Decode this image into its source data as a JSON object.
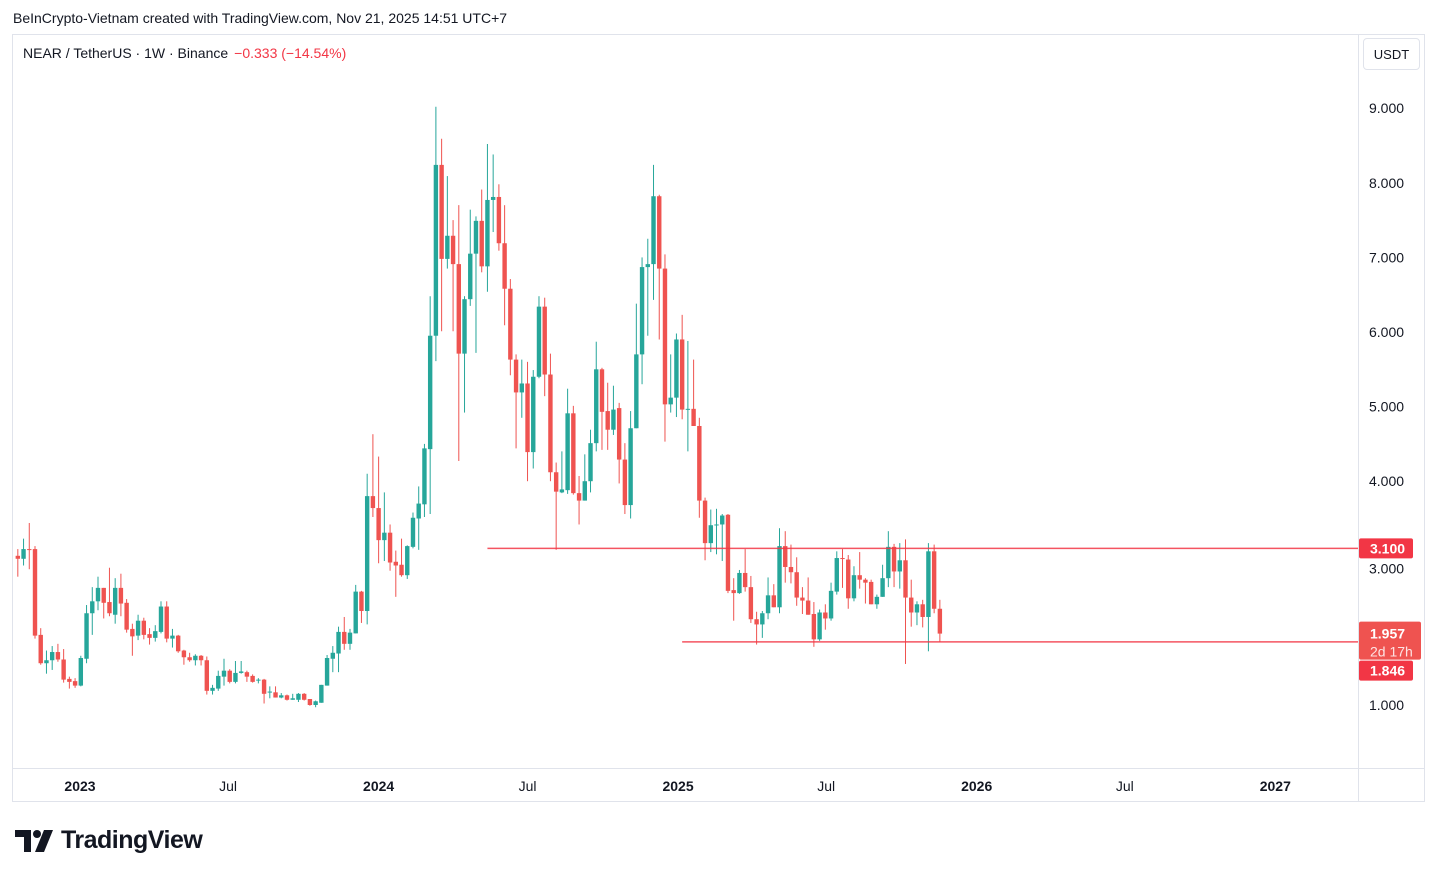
{
  "header": {
    "credit": "BeInCrypto-Vietnam created with TradingView.com, Nov 21, 2025 14:51 UTC+7"
  },
  "legend": {
    "symbol": "NEAR / TetherUS · 1W · Binance",
    "change": "−0.333 (−14.54%)"
  },
  "currency_button": "USDT",
  "branding": {
    "logo_text": "TradingView"
  },
  "colors": {
    "up": "#26a69a",
    "down": "#ef5350",
    "level_line": "#f23645",
    "last_price": "#ef5350",
    "label": "#f23645"
  },
  "chart_data": {
    "type": "candlestick",
    "symbol": "NEAR / TetherUS",
    "interval": "1W",
    "exchange": "Binance",
    "ylim": [
      0.0,
      9.0
    ],
    "y_scale": "linear",
    "grid": false,
    "y_ticks": [
      "9.000",
      "8.000",
      "7.000",
      "6.000",
      "5.000",
      "4.000",
      "3.000",
      "1.000"
    ],
    "y_tick_values": [
      9,
      8,
      7,
      6,
      5,
      4,
      3,
      1
    ],
    "x_ticks": [
      {
        "label": "2023",
        "date": "2023-01-01",
        "major": true
      },
      {
        "label": "Jul",
        "date": "2023-07-01",
        "major": false
      },
      {
        "label": "2024",
        "date": "2024-01-01",
        "major": true
      },
      {
        "label": "Jul",
        "date": "2024-07-01",
        "major": false
      },
      {
        "label": "2025",
        "date": "2025-01-01",
        "major": true
      },
      {
        "label": "Jul",
        "date": "2025-07-01",
        "major": false
      },
      {
        "label": "2026",
        "date": "2026-01-01",
        "major": true
      },
      {
        "label": "Jul",
        "date": "2026-07-01",
        "major": false
      },
      {
        "label": "2027",
        "date": "2027-01-01",
        "major": true
      }
    ],
    "dates": [
      "2022-10-17",
      "2022-10-24",
      "2022-10-31",
      "2022-11-07",
      "2022-11-14",
      "2022-11-21",
      "2022-11-28",
      "2022-12-05",
      "2022-12-12",
      "2022-12-19",
      "2022-12-26",
      "2023-01-02",
      "2023-01-09",
      "2023-01-16",
      "2023-01-23",
      "2023-01-30",
      "2023-02-06",
      "2023-02-13",
      "2023-02-20",
      "2023-02-27",
      "2023-03-06",
      "2023-03-13",
      "2023-03-20",
      "2023-03-27",
      "2023-04-03",
      "2023-04-10",
      "2023-04-17",
      "2023-04-24",
      "2023-05-01",
      "2023-05-08",
      "2023-05-15",
      "2023-05-22",
      "2023-05-29",
      "2023-06-05",
      "2023-06-12",
      "2023-06-19",
      "2023-06-26",
      "2023-07-03",
      "2023-07-10",
      "2023-07-17",
      "2023-07-24",
      "2023-07-31",
      "2023-08-07",
      "2023-08-14",
      "2023-08-21",
      "2023-08-28",
      "2023-09-04",
      "2023-09-11",
      "2023-09-18",
      "2023-09-25",
      "2023-10-02",
      "2023-10-09",
      "2023-10-16",
      "2023-10-23",
      "2023-10-30",
      "2023-11-06",
      "2023-11-13",
      "2023-11-20",
      "2023-11-27",
      "2023-12-04",
      "2023-12-11",
      "2023-12-18",
      "2023-12-25",
      "2024-01-01",
      "2024-01-08",
      "2024-01-15",
      "2024-01-22",
      "2024-01-29",
      "2024-02-05",
      "2024-02-12",
      "2024-02-19",
      "2024-02-26",
      "2024-03-04",
      "2024-03-11",
      "2024-03-18",
      "2024-03-25",
      "2024-04-01",
      "2024-04-08",
      "2024-04-15",
      "2024-04-22",
      "2024-04-29",
      "2024-05-06",
      "2024-05-13",
      "2024-05-20",
      "2024-05-27",
      "2024-06-03",
      "2024-06-10",
      "2024-06-17",
      "2024-06-24",
      "2024-07-01",
      "2024-07-08",
      "2024-07-15",
      "2024-07-22",
      "2024-07-29",
      "2024-08-05",
      "2024-08-12",
      "2024-08-19",
      "2024-08-26",
      "2024-09-02",
      "2024-09-09",
      "2024-09-16",
      "2024-09-23",
      "2024-09-30",
      "2024-10-07",
      "2024-10-14",
      "2024-10-21",
      "2024-10-28",
      "2024-11-04",
      "2024-11-11",
      "2024-11-18",
      "2024-11-25",
      "2024-12-02",
      "2024-12-09",
      "2024-12-16",
      "2024-12-23",
      "2024-12-30",
      "2025-01-06",
      "2025-01-13",
      "2025-01-20",
      "2025-01-27",
      "2025-02-03",
      "2025-02-10",
      "2025-02-17",
      "2025-02-24",
      "2025-03-03",
      "2025-03-10",
      "2025-03-17",
      "2025-03-24",
      "2025-03-31",
      "2025-04-07",
      "2025-04-14",
      "2025-04-21",
      "2025-04-28",
      "2025-05-05",
      "2025-05-12",
      "2025-05-19",
      "2025-05-26",
      "2025-06-02",
      "2025-06-09",
      "2025-06-16",
      "2025-06-23",
      "2025-06-30",
      "2025-07-07",
      "2025-07-14",
      "2025-07-21",
      "2025-07-28",
      "2025-08-04",
      "2025-08-11",
      "2025-08-18",
      "2025-08-25",
      "2025-09-01",
      "2025-09-08",
      "2025-09-15",
      "2025-09-22",
      "2025-09-29",
      "2025-10-06",
      "2025-10-13",
      "2025-10-20",
      "2025-10-27",
      "2025-11-03",
      "2025-11-10",
      "2025-11-17"
    ],
    "ohlc": [
      [
        3.0,
        3.09,
        2.72,
        2.96
      ],
      [
        2.96,
        3.23,
        2.87,
        3.09
      ],
      [
        3.09,
        3.44,
        2.82,
        3.08
      ],
      [
        3.09,
        3.13,
        1.89,
        1.93
      ],
      [
        1.94,
        2.03,
        1.54,
        1.56
      ],
      [
        1.56,
        1.73,
        1.42,
        1.6
      ],
      [
        1.6,
        1.79,
        1.47,
        1.71
      ],
      [
        1.71,
        1.82,
        1.58,
        1.61
      ],
      [
        1.61,
        1.75,
        1.3,
        1.34
      ],
      [
        1.35,
        1.38,
        1.22,
        1.31
      ],
      [
        1.32,
        1.36,
        1.23,
        1.26
      ],
      [
        1.26,
        1.66,
        1.25,
        1.63
      ],
      [
        1.62,
        2.34,
        1.56,
        2.23
      ],
      [
        2.23,
        2.58,
        1.94,
        2.39
      ],
      [
        2.39,
        2.72,
        2.27,
        2.57
      ],
      [
        2.57,
        2.57,
        2.16,
        2.37
      ],
      [
        2.38,
        2.84,
        2.19,
        2.23
      ],
      [
        2.21,
        2.7,
        2.09,
        2.57
      ],
      [
        2.57,
        2.76,
        2.19,
        2.36
      ],
      [
        2.37,
        2.42,
        1.97,
        2.01
      ],
      [
        2.02,
        2.09,
        1.66,
        1.92
      ],
      [
        1.93,
        2.21,
        1.87,
        2.13
      ],
      [
        2.13,
        2.17,
        1.88,
        1.94
      ],
      [
        1.95,
        2.03,
        1.81,
        1.9
      ],
      [
        1.9,
        2.07,
        1.85,
        1.99
      ],
      [
        1.98,
        2.39,
        1.96,
        2.32
      ],
      [
        2.32,
        2.39,
        1.84,
        1.89
      ],
      [
        1.89,
        2.02,
        1.77,
        1.93
      ],
      [
        1.93,
        1.94,
        1.7,
        1.72
      ],
      [
        1.73,
        1.74,
        1.54,
        1.64
      ],
      [
        1.64,
        1.7,
        1.58,
        1.6
      ],
      [
        1.6,
        1.68,
        1.53,
        1.66
      ],
      [
        1.66,
        1.67,
        1.53,
        1.6
      ],
      [
        1.6,
        1.65,
        1.14,
        1.19
      ],
      [
        1.19,
        1.27,
        1.14,
        1.23
      ],
      [
        1.22,
        1.46,
        1.19,
        1.39
      ],
      [
        1.38,
        1.62,
        1.26,
        1.46
      ],
      [
        1.46,
        1.48,
        1.29,
        1.31
      ],
      [
        1.31,
        1.59,
        1.29,
        1.43
      ],
      [
        1.43,
        1.59,
        1.42,
        1.45
      ],
      [
        1.44,
        1.46,
        1.31,
        1.38
      ],
      [
        1.39,
        1.41,
        1.3,
        1.31
      ],
      [
        1.33,
        1.36,
        1.29,
        1.34
      ],
      [
        1.34,
        1.35,
        1.02,
        1.15
      ],
      [
        1.17,
        1.25,
        1.09,
        1.18
      ],
      [
        1.17,
        1.25,
        1.1,
        1.1
      ],
      [
        1.1,
        1.16,
        1.09,
        1.13
      ],
      [
        1.13,
        1.14,
        1.06,
        1.07
      ],
      [
        1.07,
        1.15,
        1.07,
        1.09
      ],
      [
        1.07,
        1.16,
        1.04,
        1.15
      ],
      [
        1.15,
        1.16,
        1.06,
        1.07
      ],
      [
        1.08,
        1.08,
        0.99,
        1.0
      ],
      [
        1.0,
        1.06,
        0.97,
        1.05
      ],
      [
        1.03,
        1.27,
        1.03,
        1.27
      ],
      [
        1.26,
        1.67,
        1.26,
        1.63
      ],
      [
        1.62,
        1.79,
        1.44,
        1.7
      ],
      [
        1.69,
        2.05,
        1.44,
        1.98
      ],
      [
        1.98,
        2.18,
        1.74,
        1.82
      ],
      [
        1.82,
        2.02,
        1.74,
        1.97
      ],
      [
        1.96,
        2.61,
        1.96,
        2.52
      ],
      [
        2.52,
        2.53,
        2.1,
        2.26
      ],
      [
        2.26,
        4.1,
        2.08,
        3.8
      ],
      [
        3.8,
        4.63,
        3.52,
        3.64
      ],
      [
        3.64,
        4.33,
        2.9,
        3.21
      ],
      [
        3.21,
        3.85,
        2.93,
        3.31
      ],
      [
        3.31,
        3.42,
        2.8,
        2.91
      ],
      [
        2.92,
        3.07,
        2.45,
        2.87
      ],
      [
        2.88,
        3.23,
        2.72,
        2.74
      ],
      [
        2.74,
        3.14,
        2.69,
        3.13
      ],
      [
        3.12,
        3.58,
        3.1,
        3.51
      ],
      [
        3.5,
        3.93,
        3.08,
        3.7
      ],
      [
        3.69,
        4.5,
        3.52,
        4.44
      ],
      [
        4.43,
        6.48,
        3.56,
        5.95
      ],
      [
        5.95,
        9.02,
        5.61,
        8.24
      ],
      [
        8.24,
        8.59,
        6.01,
        6.98
      ],
      [
        6.98,
        8.09,
        6.85,
        7.29
      ],
      [
        7.29,
        7.5,
        6.01,
        6.91
      ],
      [
        6.91,
        7.7,
        4.27,
        5.71
      ],
      [
        5.71,
        6.48,
        4.92,
        6.44
      ],
      [
        6.44,
        7.64,
        6.35,
        7.05
      ],
      [
        7.05,
        7.55,
        5.72,
        7.49
      ],
      [
        7.49,
        7.91,
        6.8,
        6.88
      ],
      [
        6.88,
        8.52,
        6.54,
        7.77
      ],
      [
        7.77,
        8.38,
        7.34,
        7.81
      ],
      [
        7.81,
        7.98,
        7.09,
        7.19
      ],
      [
        7.19,
        7.7,
        6.09,
        6.58
      ],
      [
        6.58,
        6.71,
        5.42,
        5.63
      ],
      [
        5.63,
        5.7,
        4.44,
        5.19
      ],
      [
        5.19,
        5.63,
        4.85,
        5.31
      ],
      [
        5.31,
        5.6,
        4.0,
        4.39
      ],
      [
        4.39,
        5.49,
        4.17,
        5.4
      ],
      [
        5.4,
        6.48,
        5.38,
        6.34
      ],
      [
        6.34,
        6.46,
        5.14,
        5.43
      ],
      [
        5.43,
        5.71,
        4.0,
        4.12
      ],
      [
        4.12,
        4.25,
        3.08,
        3.86
      ],
      [
        3.85,
        4.4,
        3.84,
        3.89
      ],
      [
        3.88,
        5.24,
        3.83,
        4.91
      ],
      [
        4.91,
        5.01,
        3.82,
        3.84
      ],
      [
        3.84,
        4.07,
        3.42,
        3.74
      ],
      [
        3.74,
        4.36,
        3.74,
        4.0
      ],
      [
        4.0,
        4.69,
        3.85,
        4.51
      ],
      [
        4.51,
        5.87,
        4.4,
        5.5
      ],
      [
        5.5,
        5.52,
        4.42,
        4.93
      ],
      [
        4.94,
        5.32,
        4.42,
        4.69
      ],
      [
        4.69,
        5.28,
        4.62,
        4.96
      ],
      [
        4.98,
        5.05,
        3.97,
        4.29
      ],
      [
        4.29,
        4.51,
        3.56,
        3.68
      ],
      [
        3.68,
        4.94,
        3.5,
        4.71
      ],
      [
        4.71,
        6.38,
        4.71,
        5.7
      ],
      [
        5.7,
        7.0,
        5.3,
        6.87
      ],
      [
        6.87,
        7.25,
        5.95,
        6.91
      ],
      [
        6.91,
        8.24,
        6.43,
        7.82
      ],
      [
        7.82,
        7.84,
        5.9,
        6.85
      ],
      [
        6.85,
        7.04,
        4.53,
        5.03
      ],
      [
        5.03,
        5.7,
        4.92,
        5.12
      ],
      [
        5.12,
        5.98,
        4.86,
        5.9
      ],
      [
        5.9,
        6.23,
        4.83,
        4.96
      ],
      [
        4.97,
        5.88,
        4.4,
        4.97
      ],
      [
        4.97,
        5.63,
        4.74,
        4.74
      ],
      [
        4.74,
        4.85,
        3.51,
        3.74
      ],
      [
        3.74,
        3.78,
        2.94,
        3.17
      ],
      [
        3.17,
        3.62,
        3.05,
        3.41
      ],
      [
        3.41,
        3.63,
        3.02,
        3.42
      ],
      [
        3.42,
        3.56,
        2.93,
        3.54
      ],
      [
        3.55,
        3.56,
        2.5,
        2.53
      ],
      [
        2.54,
        2.7,
        2.13,
        2.5
      ],
      [
        2.5,
        2.81,
        2.49,
        2.77
      ],
      [
        2.77,
        3.09,
        2.52,
        2.58
      ],
      [
        2.58,
        2.73,
        2.1,
        2.15
      ],
      [
        2.15,
        2.25,
        1.81,
        2.08
      ],
      [
        2.08,
        2.26,
        1.9,
        2.23
      ],
      [
        2.23,
        2.71,
        2.15,
        2.47
      ],
      [
        2.47,
        2.62,
        2.31,
        2.31
      ],
      [
        2.31,
        3.37,
        2.23,
        3.13
      ],
      [
        3.13,
        3.33,
        2.64,
        2.85
      ],
      [
        2.85,
        3.15,
        2.63,
        2.78
      ],
      [
        2.78,
        2.98,
        2.33,
        2.44
      ],
      [
        2.44,
        2.58,
        2.22,
        2.4
      ],
      [
        2.4,
        2.71,
        2.21,
        2.21
      ],
      [
        2.22,
        2.38,
        1.78,
        1.88
      ],
      [
        1.88,
        2.28,
        1.86,
        2.24
      ],
      [
        2.24,
        2.35,
        2.01,
        2.16
      ],
      [
        2.16,
        2.64,
        2.13,
        2.53
      ],
      [
        2.52,
        3.06,
        2.48,
        2.97
      ],
      [
        2.97,
        3.09,
        2.57,
        2.96
      ],
      [
        2.95,
        3.01,
        2.29,
        2.43
      ],
      [
        2.43,
        2.86,
        2.39,
        2.74
      ],
      [
        2.74,
        3.05,
        2.56,
        2.68
      ],
      [
        2.68,
        2.7,
        2.36,
        2.64
      ],
      [
        2.65,
        2.68,
        2.35,
        2.35
      ],
      [
        2.35,
        2.48,
        2.29,
        2.45
      ],
      [
        2.45,
        2.88,
        2.45,
        2.7
      ],
      [
        2.7,
        3.33,
        2.58,
        3.12
      ],
      [
        3.12,
        3.16,
        2.58,
        2.79
      ],
      [
        2.79,
        3.17,
        2.56,
        2.94
      ],
      [
        2.94,
        3.22,
        1.55,
        2.44
      ],
      [
        2.44,
        2.68,
        2.05,
        2.24
      ],
      [
        2.24,
        2.39,
        2.07,
        2.35
      ],
      [
        2.35,
        2.41,
        2.04,
        2.18
      ],
      [
        2.18,
        3.17,
        1.72,
        3.06
      ],
      [
        3.06,
        3.15,
        2.23,
        2.29
      ],
      [
        2.29,
        2.41,
        1.846,
        1.957
      ]
    ],
    "horizontal_lines": [
      {
        "value": 3.1,
        "label": "3.100",
        "from": "2024-05-13"
      },
      {
        "value": 1.846,
        "label": "1.846",
        "from": "2025-01-06"
      }
    ],
    "last_price": {
      "value": 1.957,
      "label": "1.957",
      "countdown": "2d 17h"
    }
  }
}
